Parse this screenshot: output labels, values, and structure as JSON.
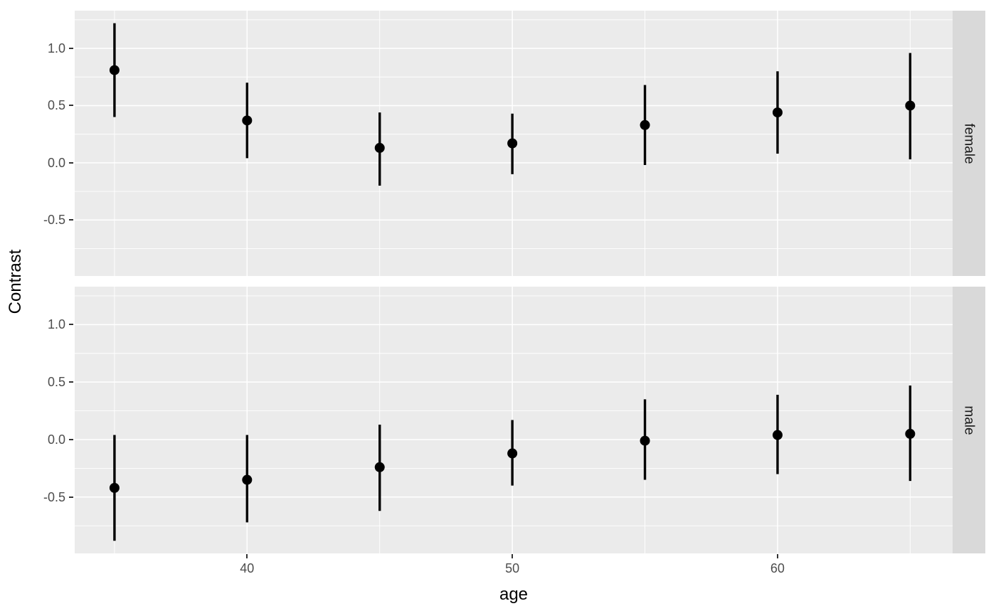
{
  "chart_data": {
    "type": "scatter",
    "subtype": "pointrange",
    "title": "",
    "xlabel": "age",
    "ylabel": "Contrast",
    "facet_layout": "rows-right-strips",
    "legend_position": "none",
    "grid": true,
    "xlim": [
      33.5,
      66.6
    ],
    "ylim": [
      -0.99,
      1.33
    ],
    "x_ticks": {
      "values": [
        40,
        50,
        60
      ],
      "labels": [
        "40",
        "50",
        "60"
      ]
    },
    "y_ticks": {
      "values": [
        1.0,
        0.5,
        0.0,
        -0.5
      ],
      "labels": [
        "1.0",
        "0.5",
        "0.0",
        "-0.5"
      ]
    },
    "x_minor_ticks": [
      35,
      45,
      55,
      65
    ],
    "y_minor_ticks": [
      1.25,
      0.75,
      0.25,
      -0.25,
      -0.75
    ],
    "facets": [
      {
        "label": "female",
        "points": [
          {
            "x": 35,
            "y": 0.81,
            "ymin": 0.4,
            "ymax": 1.22
          },
          {
            "x": 40,
            "y": 0.37,
            "ymin": 0.04,
            "ymax": 0.7
          },
          {
            "x": 45,
            "y": 0.13,
            "ymin": -0.2,
            "ymax": 0.44
          },
          {
            "x": 50,
            "y": 0.17,
            "ymin": -0.1,
            "ymax": 0.43
          },
          {
            "x": 55,
            "y": 0.33,
            "ymin": -0.02,
            "ymax": 0.68
          },
          {
            "x": 60,
            "y": 0.44,
            "ymin": 0.08,
            "ymax": 0.8
          },
          {
            "x": 65,
            "y": 0.5,
            "ymin": 0.03,
            "ymax": 0.96
          }
        ]
      },
      {
        "label": "male",
        "points": [
          {
            "x": 35,
            "y": -0.42,
            "ymin": -0.88,
            "ymax": 0.04
          },
          {
            "x": 40,
            "y": -0.35,
            "ymin": -0.72,
            "ymax": 0.04
          },
          {
            "x": 45,
            "y": -0.24,
            "ymin": -0.62,
            "ymax": 0.13
          },
          {
            "x": 50,
            "y": -0.12,
            "ymin": -0.4,
            "ymax": 0.17
          },
          {
            "x": 55,
            "y": -0.01,
            "ymin": -0.35,
            "ymax": 0.35
          },
          {
            "x": 60,
            "y": 0.04,
            "ymin": -0.3,
            "ymax": 0.39
          },
          {
            "x": 65,
            "y": 0.05,
            "ymin": -0.36,
            "ymax": 0.47
          }
        ]
      }
    ],
    "colors": {
      "background": "#FFFFFF",
      "panel_background": "#EBEBEB",
      "strip_background": "#D9D9D9",
      "grid": "#FFFFFF",
      "point": "#000000",
      "error_bar": "#000000",
      "axis_text": "#4D4D4D",
      "axis_title": "#000000",
      "strip_text": "#1A1A1A",
      "tick_mark": "#333333"
    }
  }
}
